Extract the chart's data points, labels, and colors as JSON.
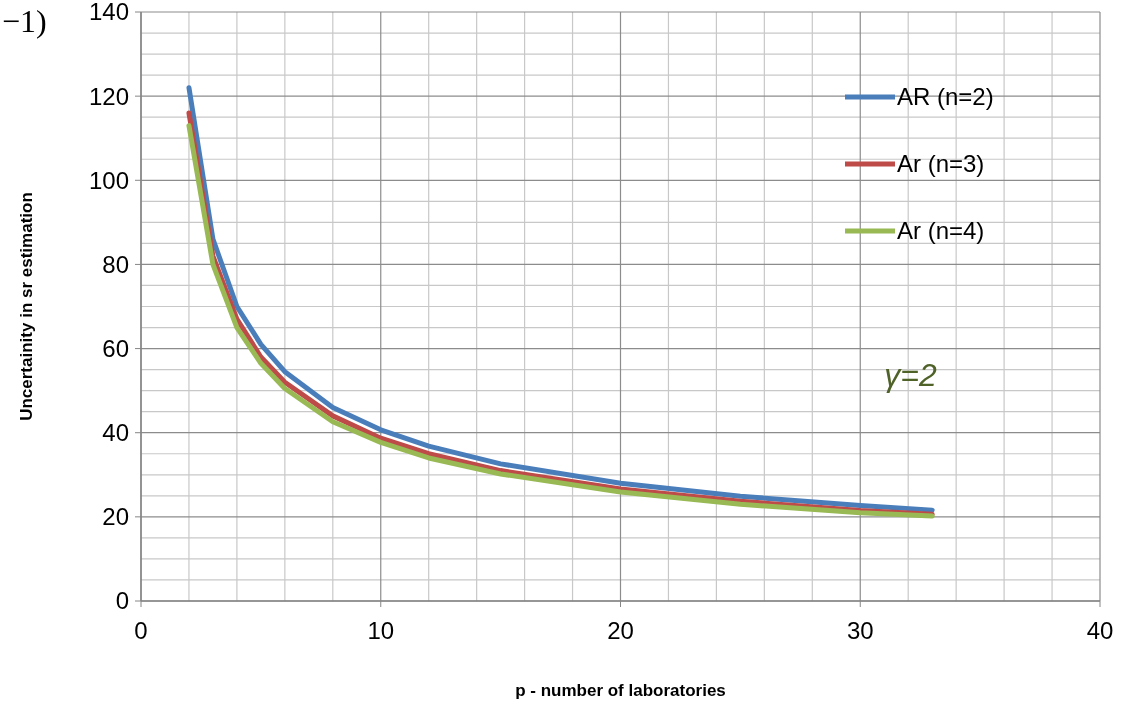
{
  "chart_data": {
    "type": "line",
    "xlabel": "p - number of laboratories",
    "ylabel": "Uncertainity in sr estimation",
    "xlim": [
      0,
      40
    ],
    "xticks": [
      0,
      10,
      20,
      30,
      40
    ],
    "ylim": [
      0,
      140
    ],
    "yticks": [
      0,
      20,
      40,
      60,
      80,
      100,
      120,
      140
    ],
    "grid": true,
    "legend": "top right",
    "marker": "none",
    "line_style": "solid",
    "annotations": [
      "γ=2",
      "−1)"
    ],
    "series": [
      {
        "name": "AR (n=2)",
        "color": "#4a7ebb",
        "x": [
          2,
          3,
          4,
          5,
          6,
          8,
          10,
          12,
          15,
          20,
          25,
          30,
          33
        ],
        "values": [
          122,
          86,
          70,
          61,
          54.5,
          46,
          40.7,
          36.8,
          32.6,
          28,
          24.9,
          22.7,
          21.6
        ]
      },
      {
        "name": "Ar (n=3)",
        "color": "#be4b48",
        "x": [
          2,
          3,
          4,
          5,
          6,
          8,
          10,
          12,
          15,
          20,
          25,
          30,
          33
        ],
        "values": [
          116,
          82,
          67,
          58,
          52,
          44,
          38.7,
          35,
          31,
          26.6,
          23.7,
          21.5,
          20.6
        ]
      },
      {
        "name": "Ar (n=4)",
        "color": "#98b954",
        "x": [
          2,
          3,
          4,
          5,
          6,
          8,
          10,
          12,
          15,
          20,
          25,
          30,
          33
        ],
        "values": [
          113,
          80,
          65,
          56.5,
          50.5,
          42.6,
          37.7,
          34,
          30.2,
          25.9,
          23,
          21,
          20.2
        ]
      }
    ]
  }
}
